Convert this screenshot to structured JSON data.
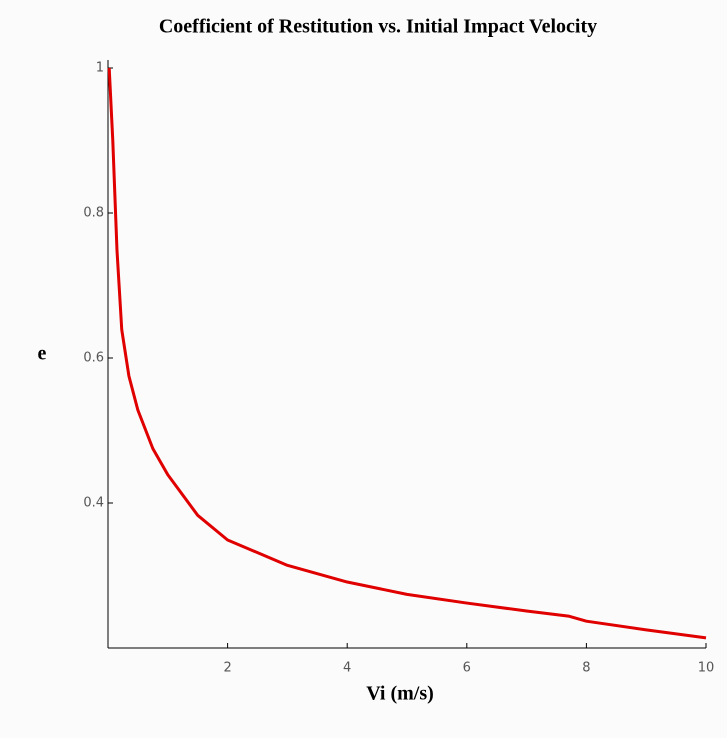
{
  "chart_data": {
    "type": "line",
    "title": "Coefficient of Restitution vs. Initial Impact Velocity",
    "x_label": "Vi (m/s)",
    "y_label": "e",
    "x": [
      0.02,
      0.08,
      0.15,
      0.23,
      0.35,
      0.5,
      0.75,
      1,
      1.5,
      2,
      3,
      4,
      5,
      6,
      7,
      7.7,
      8,
      9,
      10
    ],
    "values": [
      1.0,
      0.9,
      0.749,
      0.639,
      0.575,
      0.528,
      0.475,
      0.439,
      0.383,
      0.349,
      0.314,
      0.291,
      0.274,
      0.262,
      0.251,
      0.244,
      0.237,
      0.225,
      0.214
    ],
    "color": "#e00000",
    "xlim": [
      0,
      10
    ],
    "ylim": [
      0.2,
      1
    ],
    "xticks": [
      2,
      4,
      6,
      8,
      10
    ],
    "yticks": [
      0.4,
      0.6,
      0.8,
      1
    ]
  }
}
